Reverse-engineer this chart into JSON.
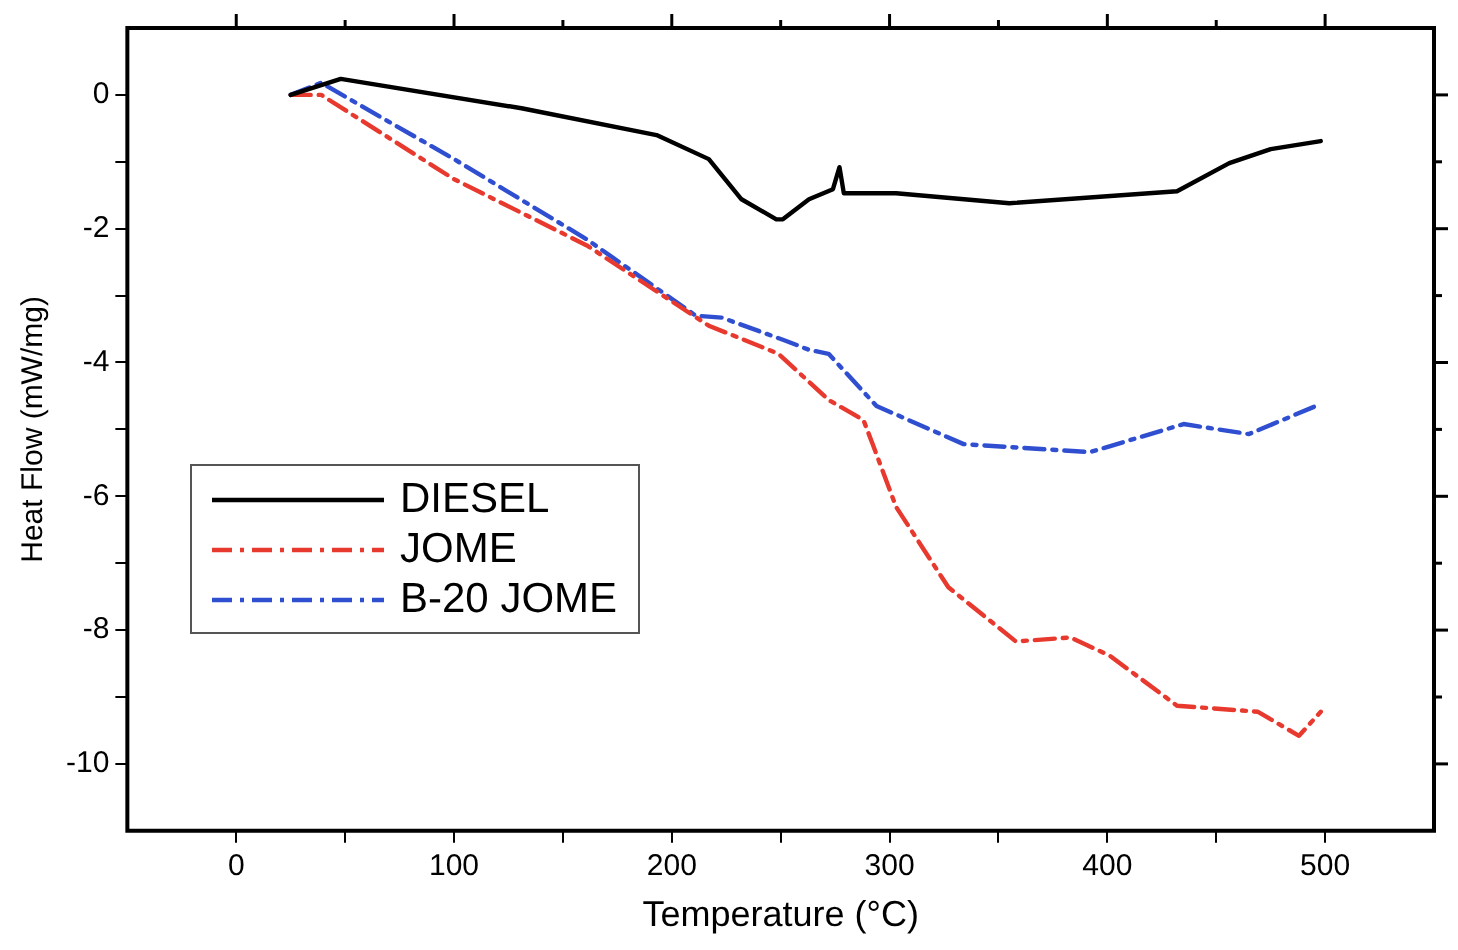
{
  "chart_data": {
    "type": "line",
    "xlabel": "Temperature (°C)",
    "ylabel": "Heat Flow (mW/mg)",
    "xlim": [
      -50,
      550
    ],
    "xticks": [
      0,
      {
        "value": 50,
        "label": null
      },
      100,
      {
        "value": 150,
        "label": null
      },
      200,
      {
        "value": 250,
        "label": null
      },
      300,
      {
        "value": 350,
        "label": null
      },
      400,
      {
        "value": 450,
        "label": null
      },
      500
    ],
    "ylim": [
      -11,
      1
    ],
    "yticks": [
      -10,
      {
        "value": -9,
        "label": null
      },
      -8,
      {
        "value": -7,
        "label": null
      },
      -6,
      {
        "value": -5,
        "label": null
      },
      -4,
      {
        "value": -3,
        "label": null
      },
      -2,
      {
        "value": -1,
        "label": null
      },
      0
    ],
    "grid": false,
    "legend": "left",
    "marker": "none",
    "series": [
      {
        "name": "DIESEL",
        "color": "#000000",
        "line_style": "solid",
        "x": [
          25,
          48,
          131,
          193,
          217,
          232,
          248,
          251,
          263,
          274,
          277,
          279,
          303,
          355,
          432,
          456,
          475,
          498
        ],
        "values": [
          0,
          0.24,
          -0.2,
          -0.6,
          -0.96,
          -1.56,
          -1.86,
          -1.86,
          -1.56,
          -1.41,
          -1.08,
          -1.47,
          -1.47,
          -1.62,
          -1.44,
          -1.02,
          -0.81,
          -0.69
        ]
      },
      {
        "name": "JOME",
        "color": "#e8392e",
        "line_style": "dashed",
        "x": [
          25,
          39,
          100,
          161,
          217,
          249,
          272,
          288,
          292,
          303,
          327,
          358,
          383,
          401,
          432,
          469,
          488,
          498
        ],
        "values": [
          0,
          0,
          -1.26,
          -2.25,
          -3.45,
          -3.87,
          -4.56,
          -4.86,
          -5.2,
          -6.16,
          -7.36,
          -8.17,
          -8.11,
          -8.38,
          -9.13,
          -9.22,
          -9.58,
          -9.22
        ]
      },
      {
        "name": "B-20 JOME",
        "color": "#2f4fd0",
        "line_style": "dashed",
        "x": [
          25,
          39,
          100,
          161,
          211,
          223,
          251,
          263,
          272,
          294,
          334,
          392,
          435,
          465,
          498
        ],
        "values": [
          0,
          0.18,
          -0.96,
          -2.16,
          -3.3,
          -3.33,
          -3.66,
          -3.81,
          -3.87,
          -4.65,
          -5.22,
          -5.34,
          -4.92,
          -5.07,
          -4.62
        ]
      }
    ]
  }
}
